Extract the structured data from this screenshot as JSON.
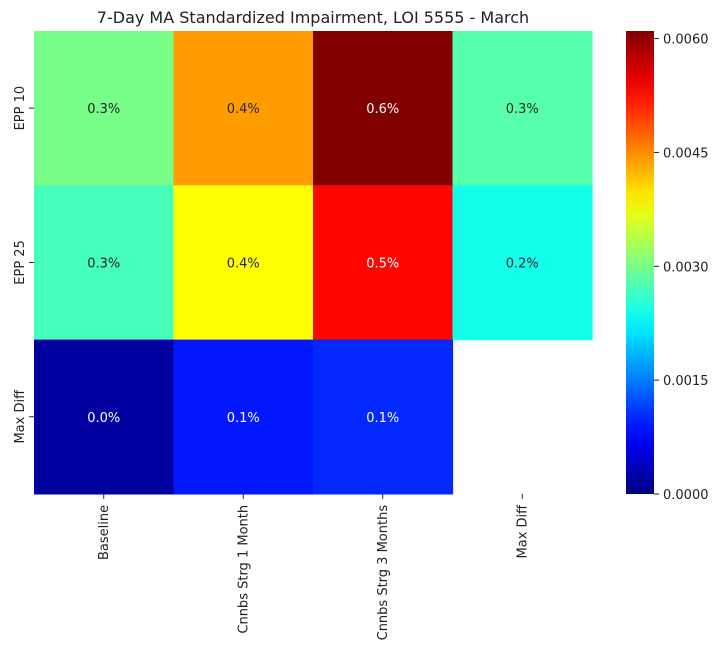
{
  "chart_data": {
    "type": "heatmap",
    "title": "7-Day MA Standardized Impairment, LOI 5555 - March",
    "xlabel": "",
    "ylabel": "",
    "columns": [
      "Baseline",
      "Cnnbs Strg 1 Month",
      "Cnnbs Strg 3 Months",
      "Max Diff"
    ],
    "rows": [
      "EPP 10",
      "EPP 25",
      "Max Diff"
    ],
    "values": [
      [
        0.003,
        0.0044,
        0.0061,
        0.0028
      ],
      [
        0.0027,
        0.0038,
        0.0053,
        0.0024
      ],
      [
        0.0002,
        0.0009,
        0.001,
        null
      ]
    ],
    "cell_labels": [
      [
        "0.3%",
        "0.4%",
        "0.6%",
        "0.3%"
      ],
      [
        "0.3%",
        "0.4%",
        "0.5%",
        "0.2%"
      ],
      [
        "0.0%",
        "0.1%",
        "0.1%",
        ""
      ]
    ],
    "colormap": "jet",
    "colorbar": {
      "range": [
        0,
        0.0061
      ],
      "ticks": [
        0.0,
        0.0015,
        0.003,
        0.0045,
        0.006
      ],
      "tick_labels": [
        "0.0000",
        "0.0015",
        "0.0030",
        "0.0045",
        "0.0060"
      ]
    },
    "grid": false
  }
}
